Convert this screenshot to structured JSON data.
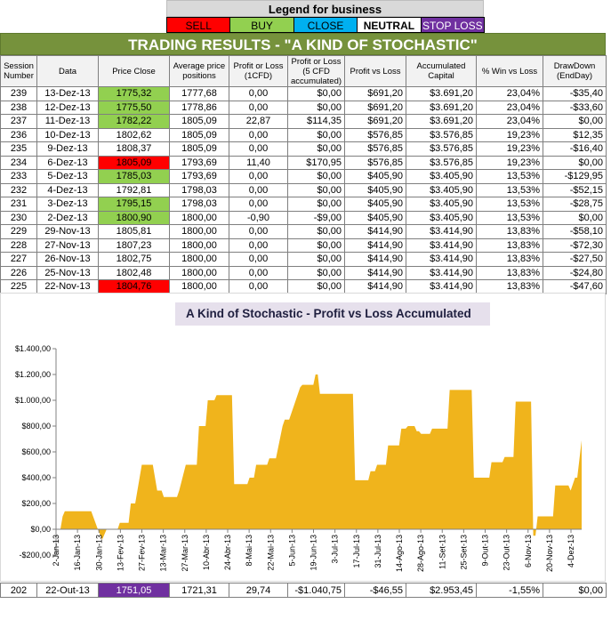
{
  "legend": {
    "title": "Legend for business",
    "items": [
      {
        "label": "SELL",
        "color": "#ff0000"
      },
      {
        "label": "BUY",
        "color": "#92d050"
      },
      {
        "label": "CLOSE",
        "color": "#00b0f0"
      },
      {
        "label": "NEUTRAL",
        "color": "#ffffff"
      },
      {
        "label": "STOP LOSS",
        "color": "#7030a0"
      }
    ]
  },
  "title": "TRADING RESULTS - \"A KIND OF STOCHASTIC\"",
  "table": {
    "headers": [
      "Session Number",
      "Data",
      "Price Close",
      "Average price positions",
      "Profit or Loss (1CFD)",
      "Profit or Loss (5 CFD accumulated)",
      "Profit vs Loss",
      "Accumulated Capital",
      "% Win vs Loss",
      "DrawDown (EndDay)"
    ],
    "rows": [
      {
        "session": "239",
        "date": "13-Dez-13",
        "price": "1775,32",
        "flag": "buy",
        "avg": "1777,68",
        "pl1": "0,00",
        "pl5": "$0,00",
        "pvl": "$691,20",
        "capital": "$3.691,20",
        "win": "23,04%",
        "dd": "-$35,40"
      },
      {
        "session": "238",
        "date": "12-Dez-13",
        "price": "1775,50",
        "flag": "buy",
        "avg": "1778,86",
        "pl1": "0,00",
        "pl5": "$0,00",
        "pvl": "$691,20",
        "capital": "$3.691,20",
        "win": "23,04%",
        "dd": "-$33,60"
      },
      {
        "session": "237",
        "date": "11-Dez-13",
        "price": "1782,22",
        "flag": "buy",
        "avg": "1805,09",
        "pl1": "22,87",
        "pl5": "$114,35",
        "pvl": "$691,20",
        "capital": "$3.691,20",
        "win": "23,04%",
        "dd": "$0,00"
      },
      {
        "session": "236",
        "date": "10-Dez-13",
        "price": "1802,62",
        "flag": "",
        "avg": "1805,09",
        "pl1": "0,00",
        "pl5": "$0,00",
        "pvl": "$576,85",
        "capital": "$3.576,85",
        "win": "19,23%",
        "dd": "$12,35"
      },
      {
        "session": "235",
        "date": "9-Dez-13",
        "price": "1808,37",
        "flag": "",
        "avg": "1805,09",
        "pl1": "0,00",
        "pl5": "$0,00",
        "pvl": "$576,85",
        "capital": "$3.576,85",
        "win": "19,23%",
        "dd": "-$16,40"
      },
      {
        "session": "234",
        "date": "6-Dez-13",
        "price": "1805,09",
        "flag": "sell",
        "avg": "1793,69",
        "pl1": "11,40",
        "pl5": "$170,95",
        "pvl": "$576,85",
        "capital": "$3.576,85",
        "win": "19,23%",
        "dd": "$0,00"
      },
      {
        "session": "233",
        "date": "5-Dez-13",
        "price": "1785,03",
        "flag": "buy",
        "avg": "1793,69",
        "pl1": "0,00",
        "pl5": "$0,00",
        "pvl": "$405,90",
        "capital": "$3.405,90",
        "win": "13,53%",
        "dd": "-$129,95"
      },
      {
        "session": "232",
        "date": "4-Dez-13",
        "price": "1792,81",
        "flag": "",
        "avg": "1798,03",
        "pl1": "0,00",
        "pl5": "$0,00",
        "pvl": "$405,90",
        "capital": "$3.405,90",
        "win": "13,53%",
        "dd": "-$52,15"
      },
      {
        "session": "231",
        "date": "3-Dez-13",
        "price": "1795,15",
        "flag": "buy",
        "avg": "1798,03",
        "pl1": "0,00",
        "pl5": "$0,00",
        "pvl": "$405,90",
        "capital": "$3.405,90",
        "win": "13,53%",
        "dd": "-$28,75"
      },
      {
        "session": "230",
        "date": "2-Dez-13",
        "price": "1800,90",
        "flag": "buy",
        "avg": "1800,00",
        "pl1": "-0,90",
        "pl5": "-$9,00",
        "pvl": "$405,90",
        "capital": "$3.405,90",
        "win": "13,53%",
        "dd": "$0,00"
      },
      {
        "session": "229",
        "date": "29-Nov-13",
        "price": "1805,81",
        "flag": "",
        "avg": "1800,00",
        "pl1": "0,00",
        "pl5": "$0,00",
        "pvl": "$414,90",
        "capital": "$3.414,90",
        "win": "13,83%",
        "dd": "-$58,10"
      },
      {
        "session": "228",
        "date": "27-Nov-13",
        "price": "1807,23",
        "flag": "",
        "avg": "1800,00",
        "pl1": "0,00",
        "pl5": "$0,00",
        "pvl": "$414,90",
        "capital": "$3.414,90",
        "win": "13,83%",
        "dd": "-$72,30"
      },
      {
        "session": "227",
        "date": "26-Nov-13",
        "price": "1802,75",
        "flag": "",
        "avg": "1800,00",
        "pl1": "0,00",
        "pl5": "$0,00",
        "pvl": "$414,90",
        "capital": "$3.414,90",
        "win": "13,83%",
        "dd": "-$27,50"
      },
      {
        "session": "226",
        "date": "25-Nov-13",
        "price": "1802,48",
        "flag": "",
        "avg": "1800,00",
        "pl1": "0,00",
        "pl5": "$0,00",
        "pvl": "$414,90",
        "capital": "$3.414,90",
        "win": "13,83%",
        "dd": "-$24,80"
      },
      {
        "session": "225",
        "date": "22-Nov-13",
        "price": "1804,76",
        "flag": "sell",
        "avg": "1800,00",
        "pl1": "0,00",
        "pl5": "$0,00",
        "pvl": "$414,90",
        "capital": "$3.414,90",
        "win": "13,83%",
        "dd": "-$47,60"
      }
    ],
    "bottom_row": {
      "session": "202",
      "date": "22-Out-13",
      "price": "1751,05",
      "flag": "stop",
      "avg": "1721,31",
      "pl1": "29,74",
      "pl5": "-$1.040,75",
      "pvl": "-$46,55",
      "capital": "$2.953,45",
      "win": "-1,55%",
      "dd": "$0,00"
    }
  },
  "chart_data": {
    "type": "area",
    "title": "A Kind of Stochastic - Profit vs Loss Accumulated",
    "color": "#f0b41c",
    "ylim": [
      -200,
      1400
    ],
    "y_ticks": [
      "-$200,00",
      "$0,00",
      "$200,00",
      "$400,00",
      "$600,00",
      "$800,00",
      "$1.000,00",
      "$1.200,00",
      "$1.400,00"
    ],
    "x_ticks": [
      "2-Jan-13",
      "16-Jan-13",
      "30-Jan-13",
      "13-Fev-13",
      "27-Fev-13",
      "13-Mar-13",
      "27-Mar-13",
      "10-Abr-13",
      "24-Abr-13",
      "8-Mai-13",
      "22-Mai-13",
      "5-Jun-13",
      "19-Jun-13",
      "3-Jul-13",
      "17-Jul-13",
      "31-Jul-13",
      "14-Ago-13",
      "28-Ago-13",
      "11-Set-13",
      "25-Set-13",
      "9-Out-13",
      "23-Out-13",
      "6-Nov-13",
      "20-Nov-13",
      "4-Dez-13"
    ],
    "x": [
      0,
      2,
      3,
      4,
      16,
      19,
      20,
      21,
      23,
      28,
      29,
      30,
      33,
      34,
      36,
      39,
      44,
      45,
      46,
      48,
      49,
      55,
      56,
      59,
      64,
      65,
      68,
      69,
      72,
      73,
      75,
      76,
      80,
      81,
      87,
      88,
      90,
      91,
      96,
      97,
      100,
      103,
      104,
      106,
      111,
      112,
      117,
      118,
      119,
      120,
      124,
      125,
      127,
      128,
      135,
      136,
      142,
      143,
      145,
      146,
      150,
      151,
      156,
      157,
      159,
      160,
      163,
      164,
      165,
      166,
      170,
      171,
      175,
      176,
      178,
      179,
      183,
      184,
      189,
      190,
      193,
      194,
      197,
      198,
      203,
      204,
      208,
      209,
      216,
      217,
      218,
      219,
      226,
      227,
      233,
      234,
      236,
      237,
      239
    ],
    "values": [
      0,
      0,
      100,
      140,
      140,
      0,
      -40,
      -80,
      0,
      0,
      50,
      50,
      50,
      200,
      200,
      500,
      500,
      400,
      300,
      300,
      250,
      250,
      300,
      500,
      500,
      800,
      800,
      1000,
      1000,
      1040,
      1040,
      1040,
      1040,
      350,
      350,
      400,
      400,
      500,
      500,
      550,
      550,
      800,
      850,
      850,
      1100,
      1120,
      1120,
      1200,
      1200,
      1050,
      1050,
      1050,
      1050,
      1050,
      1050,
      380,
      380,
      450,
      450,
      500,
      500,
      650,
      650,
      780,
      780,
      800,
      800,
      760,
      760,
      740,
      740,
      780,
      780,
      780,
      780,
      1080,
      1080,
      1080,
      1080,
      400,
      400,
      400,
      400,
      520,
      520,
      560,
      560,
      990,
      990,
      -50,
      -50,
      100,
      100,
      340,
      340,
      300,
      400,
      400,
      690
    ]
  }
}
